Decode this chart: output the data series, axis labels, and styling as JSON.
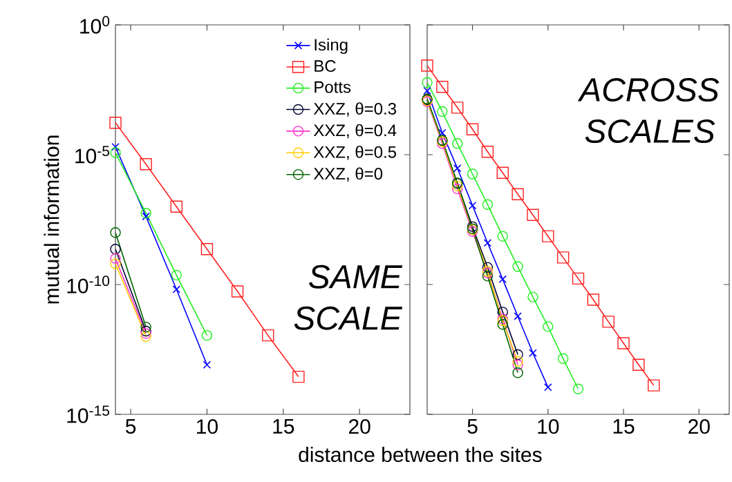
{
  "chart_data": [
    {
      "type": "line",
      "xlabel": "distance between the sites",
      "ylabel": "mutual information",
      "log": true,
      "legend": "top right",
      "grid": false,
      "xlim": [
        4,
        23.3
      ],
      "ylim": [
        1e-15,
        1
      ],
      "xticks": [
        5,
        10,
        15,
        20
      ],
      "yticks": [
        {
          "value": 1e-15,
          "label": "10$^{-15}$"
        },
        {
          "value": 1e-10,
          "label": "10$^{-10}$"
        },
        {
          "value": 1e-05,
          "label": "10$^{-5}$"
        },
        {
          "value": 1,
          "label": "10$^{0}$"
        }
      ],
      "annotations": [
        "SAME SCALE"
      ],
      "series": [
        {
          "name": "Ising",
          "color": "#0000ff",
          "marker": "cross",
          "x": [
            4,
            6,
            8,
            10
          ],
          "values": [
            2e-05,
            4.2e-08,
            6.5e-11,
            8.1e-14
          ]
        },
        {
          "name": "BC",
          "color": "#ff2020",
          "marker": "square",
          "x": [
            4,
            6,
            8,
            10,
            12,
            14,
            16
          ],
          "values": [
            0.00017,
            4.3e-06,
            1e-07,
            2.3e-09,
            5.4e-11,
            1.1e-12,
            2.8e-14
          ]
        },
        {
          "name": "Potts",
          "color": "#22ee22",
          "marker": "circle",
          "x": [
            4,
            6,
            8,
            10
          ],
          "values": [
            1.2e-05,
            5.6e-08,
            2.3e-10,
            1.1e-12
          ]
        },
        {
          "name": "XXZ, θ=0.3",
          "color": "#000033",
          "marker": "circle",
          "x": [
            4,
            6
          ],
          "values": [
            2.3e-09,
            1.6e-12
          ]
        },
        {
          "name": "XXZ, θ=0.4",
          "color": "#ff33cc",
          "marker": "circle",
          "x": [
            4,
            6
          ],
          "values": [
            1e-09,
            1.3e-12
          ]
        },
        {
          "name": "XXZ, θ=0.5",
          "color": "#ffcc00",
          "marker": "circle",
          "x": [
            4,
            6
          ],
          "values": [
            6.3e-10,
            1e-12
          ]
        },
        {
          "name": "XXZ, θ=0",
          "color": "#006600",
          "marker": "circle",
          "x": [
            4,
            6
          ],
          "values": [
            1e-08,
            2.3e-12
          ]
        }
      ]
    },
    {
      "type": "line",
      "log": true,
      "tick_labels": "x",
      "grid": false,
      "xlim": [
        2,
        22
      ],
      "ylim": [
        1e-15,
        1
      ],
      "xticks": [
        5,
        10,
        15,
        20
      ],
      "yticks": [
        {
          "value": 1e-15,
          "label": null
        },
        {
          "value": 1e-10,
          "label": null
        },
        {
          "value": 1e-05,
          "label": null
        },
        {
          "value": 1,
          "label": null
        }
      ],
      "annotations": [
        "ACROSS SCALES"
      ],
      "series": [
        {
          "color": "#0000ff",
          "marker": "cross",
          "x": [
            2,
            3,
            4,
            5,
            6,
            7,
            8,
            9,
            10
          ],
          "values": [
            0.0029,
            6.9e-05,
            3e-06,
            1.1e-07,
            4e-09,
            1.6e-10,
            6e-12,
            2.3e-13,
            1.1e-14
          ]
        },
        {
          "color": "#ff2020",
          "marker": "square",
          "x": [
            2,
            3,
            4,
            5,
            6,
            7,
            8,
            9,
            10,
            11,
            12,
            13,
            14,
            15,
            16,
            17
          ],
          "values": [
            0.027,
            0.0041,
            0.00065,
            9.5e-05,
            1.3e-05,
            2e-06,
            3e-07,
            4.8e-08,
            7.2e-09,
            1.1e-09,
            1.7e-10,
            2.6e-11,
            3.7e-12,
            5.5e-13,
            8.1e-14,
            1.3e-14
          ]
        },
        {
          "color": "#22ee22",
          "marker": "circle",
          "x": [
            2,
            3,
            4,
            5,
            6,
            7,
            8,
            9,
            10,
            11,
            12
          ],
          "values": [
            0.006,
            0.00046,
            2.7e-05,
            1.8e-06,
            1.2e-07,
            7.2e-09,
            4.9e-10,
            3.3e-11,
            2.4e-12,
            1.4e-13,
            9.5e-15
          ]
        },
        {
          "color": "#000033",
          "marker": "circle",
          "x": [
            2,
            3,
            4,
            5,
            6,
            7,
            8
          ],
          "values": [
            0.0013,
            3.5e-05,
            7.9e-07,
            1.7e-08,
            4.6e-10,
            8.7e-12,
            2e-13
          ]
        },
        {
          "color": "#ff33cc",
          "marker": "circle",
          "x": [
            2,
            3,
            4,
            5,
            6,
            7,
            8
          ],
          "values": [
            0.0011,
            2.7e-05,
            4.8e-07,
            1.1e-08,
            2.8e-10,
            4.8e-12,
            8.1e-14
          ]
        },
        {
          "color": "#ffcc00",
          "marker": "circle",
          "x": [
            2,
            3,
            4,
            5,
            6,
            7,
            8
          ],
          "values": [
            0.0012,
            3.2e-05,
            6.3e-07,
            1.3e-08,
            3.2e-10,
            4e-12,
            1.1e-13
          ]
        },
        {
          "color": "#006600",
          "marker": "circle",
          "x": [
            2,
            3,
            4,
            5,
            6,
            7,
            8
          ],
          "values": [
            0.0014,
            3.6e-05,
            8.1e-07,
            1.4e-08,
            2.1e-10,
            2.9e-12,
            4e-14
          ]
        }
      ]
    }
  ]
}
